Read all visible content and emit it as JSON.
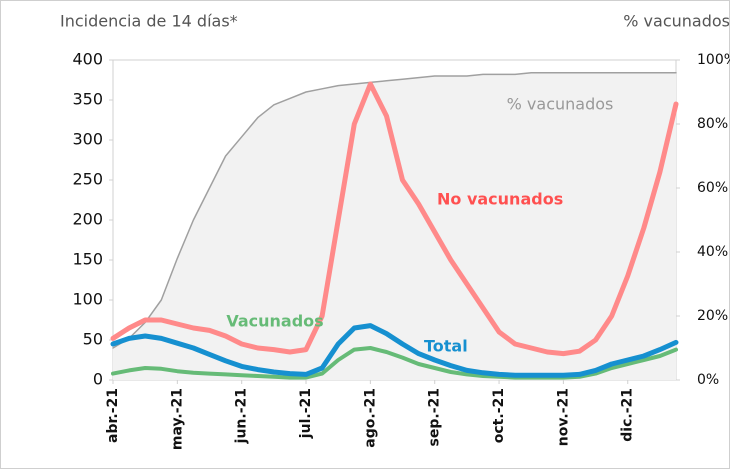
{
  "chart_data": {
    "type": "line",
    "ylabel": "Incidencia de 14 días*",
    "y2label": "% vacunados",
    "categories": [
      "abr.-21",
      null,
      null,
      null,
      "may.-21",
      null,
      null,
      null,
      "jun.-21",
      null,
      null,
      null,
      "jul.-21",
      null,
      null,
      null,
      "ago.-21",
      null,
      null,
      null,
      "sep.-21",
      null,
      null,
      null,
      "oct.-21",
      null,
      null,
      null,
      "nov.-21",
      null,
      null,
      null,
      "dic.-21",
      null,
      null,
      null
    ],
    "ylim": [
      0,
      400
    ],
    "yticks": [
      0,
      50,
      100,
      150,
      200,
      250,
      300,
      350,
      400
    ],
    "y2lim": [
      0,
      100
    ],
    "y2ticks": [
      {
        "value": 0,
        "label": "0%"
      },
      {
        "value": 20,
        "label": "20%"
      },
      {
        "value": 40,
        "label": "40%"
      },
      {
        "value": 60,
        "label": "60%"
      },
      {
        "value": 80,
        "label": "80%"
      },
      {
        "value": 100,
        "label": "100%"
      }
    ],
    "series": [
      {
        "name": "% vacunados",
        "color": "#a0a0a0",
        "axis": "y2",
        "area": true,
        "values": [
          10,
          13,
          18,
          25,
          38,
          50,
          60,
          70,
          76,
          82,
          86,
          88,
          90,
          91,
          92,
          92.5,
          93,
          93.5,
          94,
          94.5,
          95,
          95,
          95,
          95.5,
          95.5,
          95.5,
          96,
          96,
          96,
          96,
          96,
          96,
          96,
          96,
          96,
          96
        ]
      },
      {
        "name": "No vacunados",
        "color": "#ff8a8a",
        "values": [
          52,
          65,
          75,
          75,
          70,
          65,
          62,
          55,
          45,
          40,
          38,
          35,
          38,
          80,
          200,
          320,
          370,
          330,
          250,
          220,
          185,
          150,
          120,
          90,
          60,
          45,
          40,
          35,
          33,
          36,
          50,
          80,
          130,
          190,
          260,
          345
        ]
      },
      {
        "name": "Vacunados",
        "color": "#66bb77",
        "values": [
          8,
          12,
          15,
          14,
          11,
          9,
          8,
          7,
          6,
          5,
          4,
          3,
          3,
          8,
          25,
          38,
          40,
          35,
          28,
          20,
          15,
          10,
          7,
          5,
          4,
          3,
          3,
          3,
          3,
          4,
          8,
          15,
          20,
          25,
          30,
          38
        ]
      },
      {
        "name": "Total",
        "color": "#1690d0",
        "values": [
          45,
          52,
          55,
          52,
          46,
          40,
          32,
          24,
          17,
          13,
          10,
          8,
          7,
          15,
          45,
          65,
          68,
          58,
          45,
          33,
          25,
          18,
          12,
          9,
          7,
          6,
          6,
          6,
          6,
          7,
          12,
          20,
          25,
          30,
          38,
          47
        ]
      }
    ]
  }
}
